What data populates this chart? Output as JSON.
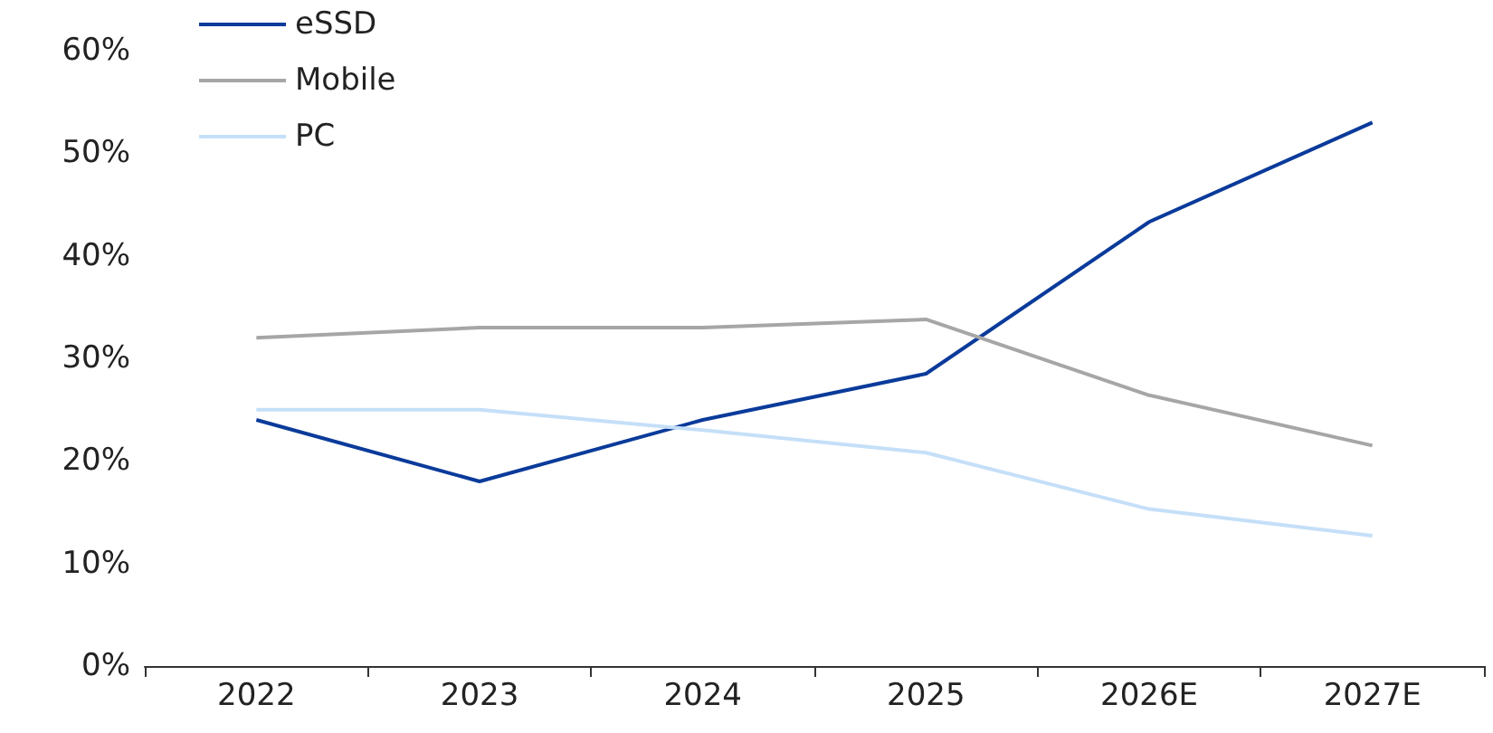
{
  "chart_data": {
    "type": "line",
    "categories": [
      "2022",
      "2023",
      "2024",
      "2025",
      "2026E",
      "2027E"
    ],
    "series": [
      {
        "name": "eSSD",
        "color": "#0a3a9a",
        "values": [
          24,
          18,
          24,
          28.5,
          43.3,
          53
        ]
      },
      {
        "name": "Mobile",
        "color": "#a6a6a6",
        "values": [
          32,
          33,
          33,
          33.8,
          26.4,
          21.5
        ]
      },
      {
        "name": "PC",
        "color": "#c5dff8",
        "values": [
          25,
          25,
          23,
          20.8,
          15.3,
          12.7
        ]
      }
    ],
    "ylim": [
      0,
      60
    ],
    "yticks": [
      {
        "value": 0,
        "label": "0%"
      },
      {
        "value": 10,
        "label": "10%"
      },
      {
        "value": 20,
        "label": "20%"
      },
      {
        "value": 30,
        "label": "30%"
      },
      {
        "value": 40,
        "label": "40%"
      },
      {
        "value": 50,
        "label": "50%"
      },
      {
        "value": 60,
        "label": "60%"
      }
    ],
    "grid": false,
    "legend": "top left",
    "marker": "none",
    "line_style": "solid"
  }
}
